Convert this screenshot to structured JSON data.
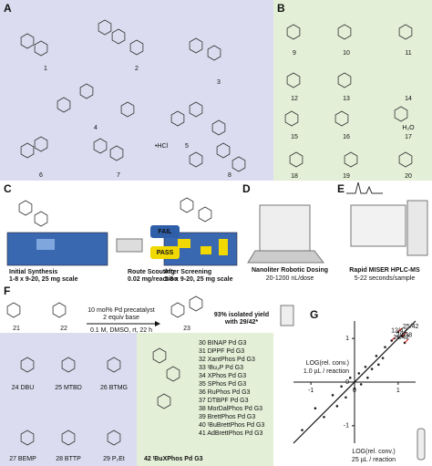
{
  "panels": {
    "a": {
      "label": "A",
      "compounds": [
        "1",
        "2",
        "3",
        "4",
        "5",
        "6",
        "7",
        "8"
      ],
      "salt": "•HCl"
    },
    "b": {
      "label": "B",
      "compounds": [
        "9",
        "10",
        "11",
        "12",
        "13",
        "14",
        "15",
        "16",
        "17",
        "18",
        "19",
        "20"
      ],
      "water": "H₂O"
    },
    "c": {
      "label": "C",
      "steps": [
        {
          "title": "Initial Synthesis",
          "detail": "1-8 x 9-20, 25 mg scale"
        },
        {
          "title": "Route Scouting",
          "detail": "0.02 mg/reaction"
        },
        {
          "title": "After Screening",
          "detail": "1-8 x 9-20, 25 mg scale"
        }
      ],
      "fail": "FAIL",
      "pass": "PASS"
    },
    "d": {
      "label": "D",
      "title": "Nanoliter Robotic Dosing",
      "detail": "20-1200 nL/dose"
    },
    "e": {
      "label": "E",
      "title": "Rapid MISER HPLC-MS",
      "detail": "5-22 seconds/sample"
    },
    "f": {
      "label": "F",
      "compounds": [
        "21",
        "22",
        "23"
      ],
      "conditions": [
        "10 mol% Pd precatalyst",
        "2 equiv base",
        "0.1 M, DMSO, rt, 22 h"
      ],
      "yield": "93% isolated yield",
      "yield_note": "with 29/42*",
      "bases": [
        "24 DBU",
        "25 MTBD",
        "26 BTMG",
        "27 BEMP",
        "28 BTTP",
        "29 P₂Et"
      ],
      "catalysts": [
        "30  BINAP Pd G3",
        "31  DPPF Pd G3",
        "32  XantPhos Pd G3",
        "33  ᵗBu₃P Pd G3",
        "34  XPhos Pd G3",
        "35  SPhos Pd G3",
        "36  RuPhos Pd G3",
        "37  DTBPF Pd G3",
        "38  MorDalPhos Pd G3",
        "39  BrettPhos Pd G3",
        "40  ᵗBuBrettPhos Pd G3",
        "41  AdBrettPhos Pd G3"
      ],
      "featured_catalyst": "42  ᵗBuXPhos Pd G3"
    }
  },
  "chart_data": {
    "type": "scatter",
    "label": "G",
    "y_label": "LOG(rel. conv.)\n1.0 µL / reaction",
    "y_label_lines": [
      "LOG(rel. conv.)",
      "1.0 µL / reaction"
    ],
    "x_label_lines": [
      "LOG(rel. conv.)",
      "25 µL / reaction"
    ],
    "xlim": [
      -1.4,
      1.4
    ],
    "ylim": [
      -1.4,
      1.4
    ],
    "xticks": [
      -1,
      0,
      1
    ],
    "yticks": [
      -1,
      0,
      1
    ],
    "series": [
      {
        "name": "reactions",
        "color": "#222",
        "x": [
          -1.2,
          -0.9,
          -0.7,
          -0.5,
          -0.4,
          -0.3,
          -0.2,
          -0.1,
          0.0,
          0.1,
          0.15,
          0.25,
          0.3,
          0.4,
          0.5,
          0.55,
          0.65,
          0.7,
          1.0,
          1.1,
          0.85,
          1.15
        ],
        "values": [
          -1.1,
          -0.6,
          -0.8,
          -0.3,
          -0.55,
          -0.1,
          -0.35,
          0.1,
          -0.15,
          0.2,
          -0.05,
          0.35,
          0.1,
          0.3,
          0.6,
          0.4,
          0.55,
          0.8,
          1.15,
          1.05,
          0.95,
          0.9
        ]
      }
    ],
    "annotations": [
      {
        "text": "25/42",
        "index": 18
      },
      {
        "text": "12/42",
        "index": 19
      },
      {
        "text": "29/38",
        "index": 20
      },
      {
        "text": "26/42",
        "index": 21
      }
    ]
  }
}
